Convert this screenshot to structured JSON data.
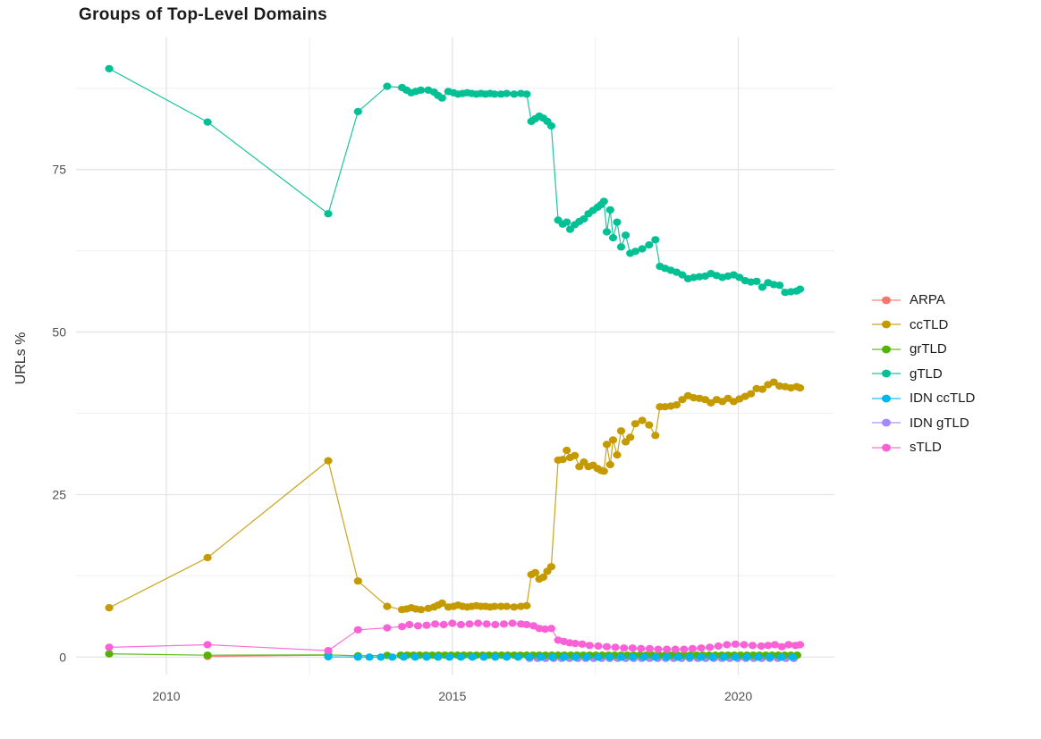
{
  "chart_data": {
    "type": "line",
    "title": "Groups of Top-Level Domains",
    "xlabel": "",
    "ylabel": "URLs %",
    "grid": true,
    "legend_position": "right",
    "x_range": [
      2008.42,
      2021.68
    ],
    "y_range": [
      -2.7,
      95.3
    ],
    "x_ticks": {
      "major": [
        2010,
        2015,
        2020
      ],
      "minor": [
        2012.5,
        2017.5
      ],
      "labels": [
        "2010",
        "2015",
        "2020"
      ]
    },
    "y_ticks": {
      "major": [
        0,
        25,
        50,
        75
      ],
      "minor": [
        12.5,
        37.5,
        62.5,
        87.5
      ],
      "labels": [
        "0",
        "25",
        "50",
        "75"
      ]
    },
    "series": [
      {
        "name": "ARPA",
        "color": "#F8766D",
        "points": [
          [
            2010.72,
            0.1
          ],
          [
            2012.83,
            0.3
          ]
        ]
      },
      {
        "name": "ccTLD",
        "color": "#C49A00",
        "points": [
          [
            2009.0,
            7.6
          ],
          [
            2010.72,
            15.3
          ],
          [
            2012.83,
            30.2
          ],
          [
            2013.35,
            11.7
          ],
          [
            2013.86,
            7.8
          ],
          [
            2014.12,
            7.3
          ],
          [
            2014.2,
            7.4
          ],
          [
            2014.28,
            7.6
          ],
          [
            2014.36,
            7.4
          ],
          [
            2014.45,
            7.3
          ],
          [
            2014.58,
            7.5
          ],
          [
            2014.68,
            7.7
          ],
          [
            2014.75,
            8.0
          ],
          [
            2014.82,
            8.3
          ],
          [
            2014.93,
            7.7
          ],
          [
            2015.02,
            7.8
          ],
          [
            2015.1,
            8.0
          ],
          [
            2015.18,
            7.8
          ],
          [
            2015.26,
            7.7
          ],
          [
            2015.34,
            7.8
          ],
          [
            2015.42,
            7.9
          ],
          [
            2015.5,
            7.8
          ],
          [
            2015.58,
            7.8
          ],
          [
            2015.66,
            7.7
          ],
          [
            2015.74,
            7.8
          ],
          [
            2015.85,
            7.8
          ],
          [
            2015.95,
            7.8
          ],
          [
            2016.08,
            7.7
          ],
          [
            2016.2,
            7.8
          ],
          [
            2016.3,
            7.9
          ],
          [
            2016.38,
            12.7
          ],
          [
            2016.45,
            13.0
          ],
          [
            2016.52,
            12.0
          ],
          [
            2016.59,
            12.3
          ],
          [
            2016.66,
            13.2
          ],
          [
            2016.73,
            13.9
          ],
          [
            2016.85,
            30.3
          ],
          [
            2016.93,
            30.4
          ],
          [
            2017.0,
            31.8
          ],
          [
            2017.06,
            30.7
          ],
          [
            2017.14,
            31.0
          ],
          [
            2017.22,
            29.3
          ],
          [
            2017.3,
            30.0
          ],
          [
            2017.38,
            29.3
          ],
          [
            2017.46,
            29.5
          ],
          [
            2017.54,
            29.0
          ],
          [
            2017.6,
            28.7
          ],
          [
            2017.65,
            28.6
          ],
          [
            2017.7,
            32.7
          ],
          [
            2017.76,
            29.6
          ],
          [
            2017.81,
            33.4
          ],
          [
            2017.88,
            31.1
          ],
          [
            2017.95,
            34.8
          ],
          [
            2018.03,
            33.1
          ],
          [
            2018.11,
            33.8
          ],
          [
            2018.2,
            35.9
          ],
          [
            2018.32,
            36.4
          ],
          [
            2018.44,
            35.7
          ],
          [
            2018.55,
            34.1
          ],
          [
            2018.63,
            38.5
          ],
          [
            2018.72,
            38.5
          ],
          [
            2018.82,
            38.6
          ],
          [
            2018.92,
            38.8
          ],
          [
            2019.02,
            39.6
          ],
          [
            2019.12,
            40.2
          ],
          [
            2019.22,
            39.9
          ],
          [
            2019.32,
            39.8
          ],
          [
            2019.42,
            39.6
          ],
          [
            2019.52,
            39.1
          ],
          [
            2019.62,
            39.6
          ],
          [
            2019.72,
            39.3
          ],
          [
            2019.82,
            39.8
          ],
          [
            2019.92,
            39.3
          ],
          [
            2020.02,
            39.7
          ],
          [
            2020.12,
            40.1
          ],
          [
            2020.22,
            40.5
          ],
          [
            2020.32,
            41.3
          ],
          [
            2020.42,
            41.2
          ],
          [
            2020.52,
            41.9
          ],
          [
            2020.62,
            42.3
          ],
          [
            2020.72,
            41.7
          ],
          [
            2020.82,
            41.6
          ],
          [
            2020.92,
            41.4
          ],
          [
            2021.02,
            41.6
          ],
          [
            2021.08,
            41.4
          ]
        ]
      },
      {
        "name": "grTLD",
        "color": "#53B400",
        "points": [
          [
            2009.0,
            0.5
          ],
          [
            2010.72,
            0.3
          ],
          [
            2012.83,
            0.35
          ],
          [
            2013.35,
            0.2
          ],
          [
            2013.86,
            0.25
          ]
        ],
        "run": {
          "from": 2014.1,
          "to": 2021.08,
          "step": 0.11,
          "value": 0.3
        }
      },
      {
        "name": "gTLD",
        "color": "#00C094",
        "points": [
          [
            2009.0,
            90.5
          ],
          [
            2010.72,
            82.3
          ],
          [
            2012.83,
            68.2
          ],
          [
            2013.35,
            83.9
          ],
          [
            2013.86,
            87.8
          ],
          [
            2014.12,
            87.6
          ],
          [
            2014.2,
            87.2
          ],
          [
            2014.28,
            86.8
          ],
          [
            2014.36,
            87.0
          ],
          [
            2014.45,
            87.2
          ],
          [
            2014.58,
            87.2
          ],
          [
            2014.68,
            86.9
          ],
          [
            2014.75,
            86.4
          ],
          [
            2014.82,
            86.0
          ],
          [
            2014.93,
            87.0
          ],
          [
            2015.02,
            86.8
          ],
          [
            2015.1,
            86.6
          ],
          [
            2015.18,
            86.7
          ],
          [
            2015.26,
            86.8
          ],
          [
            2015.34,
            86.7
          ],
          [
            2015.42,
            86.6
          ],
          [
            2015.5,
            86.7
          ],
          [
            2015.58,
            86.6
          ],
          [
            2015.66,
            86.7
          ],
          [
            2015.74,
            86.6
          ],
          [
            2015.85,
            86.6
          ],
          [
            2015.95,
            86.7
          ],
          [
            2016.08,
            86.6
          ],
          [
            2016.2,
            86.7
          ],
          [
            2016.3,
            86.6
          ],
          [
            2016.38,
            82.4
          ],
          [
            2016.45,
            82.8
          ],
          [
            2016.52,
            83.2
          ],
          [
            2016.59,
            82.9
          ],
          [
            2016.66,
            82.4
          ],
          [
            2016.73,
            81.7
          ],
          [
            2016.85,
            67.2
          ],
          [
            2016.93,
            66.6
          ],
          [
            2017.0,
            66.9
          ],
          [
            2017.06,
            65.8
          ],
          [
            2017.14,
            66.5
          ],
          [
            2017.22,
            67.0
          ],
          [
            2017.3,
            67.4
          ],
          [
            2017.38,
            68.2
          ],
          [
            2017.46,
            68.7
          ],
          [
            2017.54,
            69.2
          ],
          [
            2017.6,
            69.6
          ],
          [
            2017.65,
            70.1
          ],
          [
            2017.7,
            65.4
          ],
          [
            2017.76,
            68.8
          ],
          [
            2017.81,
            64.5
          ],
          [
            2017.88,
            66.9
          ],
          [
            2017.95,
            63.1
          ],
          [
            2018.03,
            64.9
          ],
          [
            2018.11,
            62.1
          ],
          [
            2018.2,
            62.4
          ],
          [
            2018.32,
            62.8
          ],
          [
            2018.44,
            63.4
          ],
          [
            2018.55,
            64.2
          ],
          [
            2018.63,
            60.1
          ],
          [
            2018.72,
            59.8
          ],
          [
            2018.82,
            59.5
          ],
          [
            2018.92,
            59.2
          ],
          [
            2019.02,
            58.8
          ],
          [
            2019.12,
            58.2
          ],
          [
            2019.22,
            58.4
          ],
          [
            2019.32,
            58.5
          ],
          [
            2019.42,
            58.6
          ],
          [
            2019.52,
            59.0
          ],
          [
            2019.62,
            58.7
          ],
          [
            2019.72,
            58.4
          ],
          [
            2019.82,
            58.6
          ],
          [
            2019.92,
            58.8
          ],
          [
            2020.02,
            58.4
          ],
          [
            2020.12,
            57.9
          ],
          [
            2020.22,
            57.7
          ],
          [
            2020.32,
            57.8
          ],
          [
            2020.42,
            56.9
          ],
          [
            2020.52,
            57.6
          ],
          [
            2020.62,
            57.3
          ],
          [
            2020.72,
            57.2
          ],
          [
            2020.82,
            56.1
          ],
          [
            2020.92,
            56.2
          ],
          [
            2021.02,
            56.3
          ],
          [
            2021.08,
            56.6
          ]
        ]
      },
      {
        "name": "IDN ccTLD",
        "color": "#00B6EB",
        "points": [
          [
            2012.83,
            0.05
          ]
        ],
        "run": {
          "from": 2013.35,
          "to": 2021.08,
          "step": 0.2,
          "value": 0.0
        }
      },
      {
        "name": "IDN gTLD",
        "color": "#A58AFF",
        "points": [],
        "run": {
          "from": 2016.35,
          "to": 2021.08,
          "step": 0.14,
          "value": -0.2
        }
      },
      {
        "name": "sTLD",
        "color": "#FB61D7",
        "points": [
          [
            2009.0,
            1.5
          ],
          [
            2010.72,
            1.9
          ],
          [
            2012.83,
            1.0
          ],
          [
            2013.35,
            4.2
          ],
          [
            2013.86,
            4.5
          ],
          [
            2014.12,
            4.7
          ],
          [
            2014.25,
            5.0
          ],
          [
            2014.4,
            4.8
          ],
          [
            2014.55,
            4.9
          ],
          [
            2014.7,
            5.1
          ],
          [
            2014.85,
            5.0
          ],
          [
            2015.0,
            5.2
          ],
          [
            2015.15,
            5.0
          ],
          [
            2015.3,
            5.1
          ],
          [
            2015.45,
            5.2
          ],
          [
            2015.6,
            5.1
          ],
          [
            2015.75,
            5.0
          ],
          [
            2015.9,
            5.1
          ],
          [
            2016.05,
            5.2
          ],
          [
            2016.2,
            5.1
          ],
          [
            2016.3,
            5.0
          ],
          [
            2016.42,
            4.8
          ],
          [
            2016.52,
            4.4
          ],
          [
            2016.62,
            4.3
          ],
          [
            2016.73,
            4.4
          ],
          [
            2016.85,
            2.6
          ],
          [
            2016.95,
            2.4
          ],
          [
            2017.05,
            2.2
          ],
          [
            2017.15,
            2.1
          ],
          [
            2017.27,
            2.0
          ],
          [
            2017.4,
            1.8
          ],
          [
            2017.55,
            1.7
          ],
          [
            2017.7,
            1.6
          ],
          [
            2017.85,
            1.5
          ],
          [
            2018.0,
            1.4
          ],
          [
            2018.15,
            1.4
          ],
          [
            2018.3,
            1.3
          ],
          [
            2018.45,
            1.3
          ],
          [
            2018.6,
            1.2
          ],
          [
            2018.75,
            1.2
          ],
          [
            2018.9,
            1.2
          ],
          [
            2019.05,
            1.2
          ],
          [
            2019.2,
            1.3
          ],
          [
            2019.35,
            1.4
          ],
          [
            2019.5,
            1.5
          ],
          [
            2019.65,
            1.7
          ],
          [
            2019.8,
            1.9
          ],
          [
            2019.95,
            2.0
          ],
          [
            2020.1,
            1.9
          ],
          [
            2020.25,
            1.8
          ],
          [
            2020.4,
            1.7
          ],
          [
            2020.52,
            1.8
          ],
          [
            2020.64,
            1.9
          ],
          [
            2020.76,
            1.6
          ],
          [
            2020.88,
            1.9
          ],
          [
            2021.0,
            1.8
          ],
          [
            2021.08,
            1.9
          ]
        ]
      }
    ]
  },
  "legend": {
    "items": [
      {
        "label": "ARPA",
        "color": "#F8766D"
      },
      {
        "label": "ccTLD",
        "color": "#C49A00"
      },
      {
        "label": "grTLD",
        "color": "#53B400"
      },
      {
        "label": "gTLD",
        "color": "#00C094"
      },
      {
        "label": "IDN ccTLD",
        "color": "#00B6EB"
      },
      {
        "label": "IDN gTLD",
        "color": "#A58AFF"
      },
      {
        "label": "sTLD",
        "color": "#FB61D7"
      }
    ]
  }
}
